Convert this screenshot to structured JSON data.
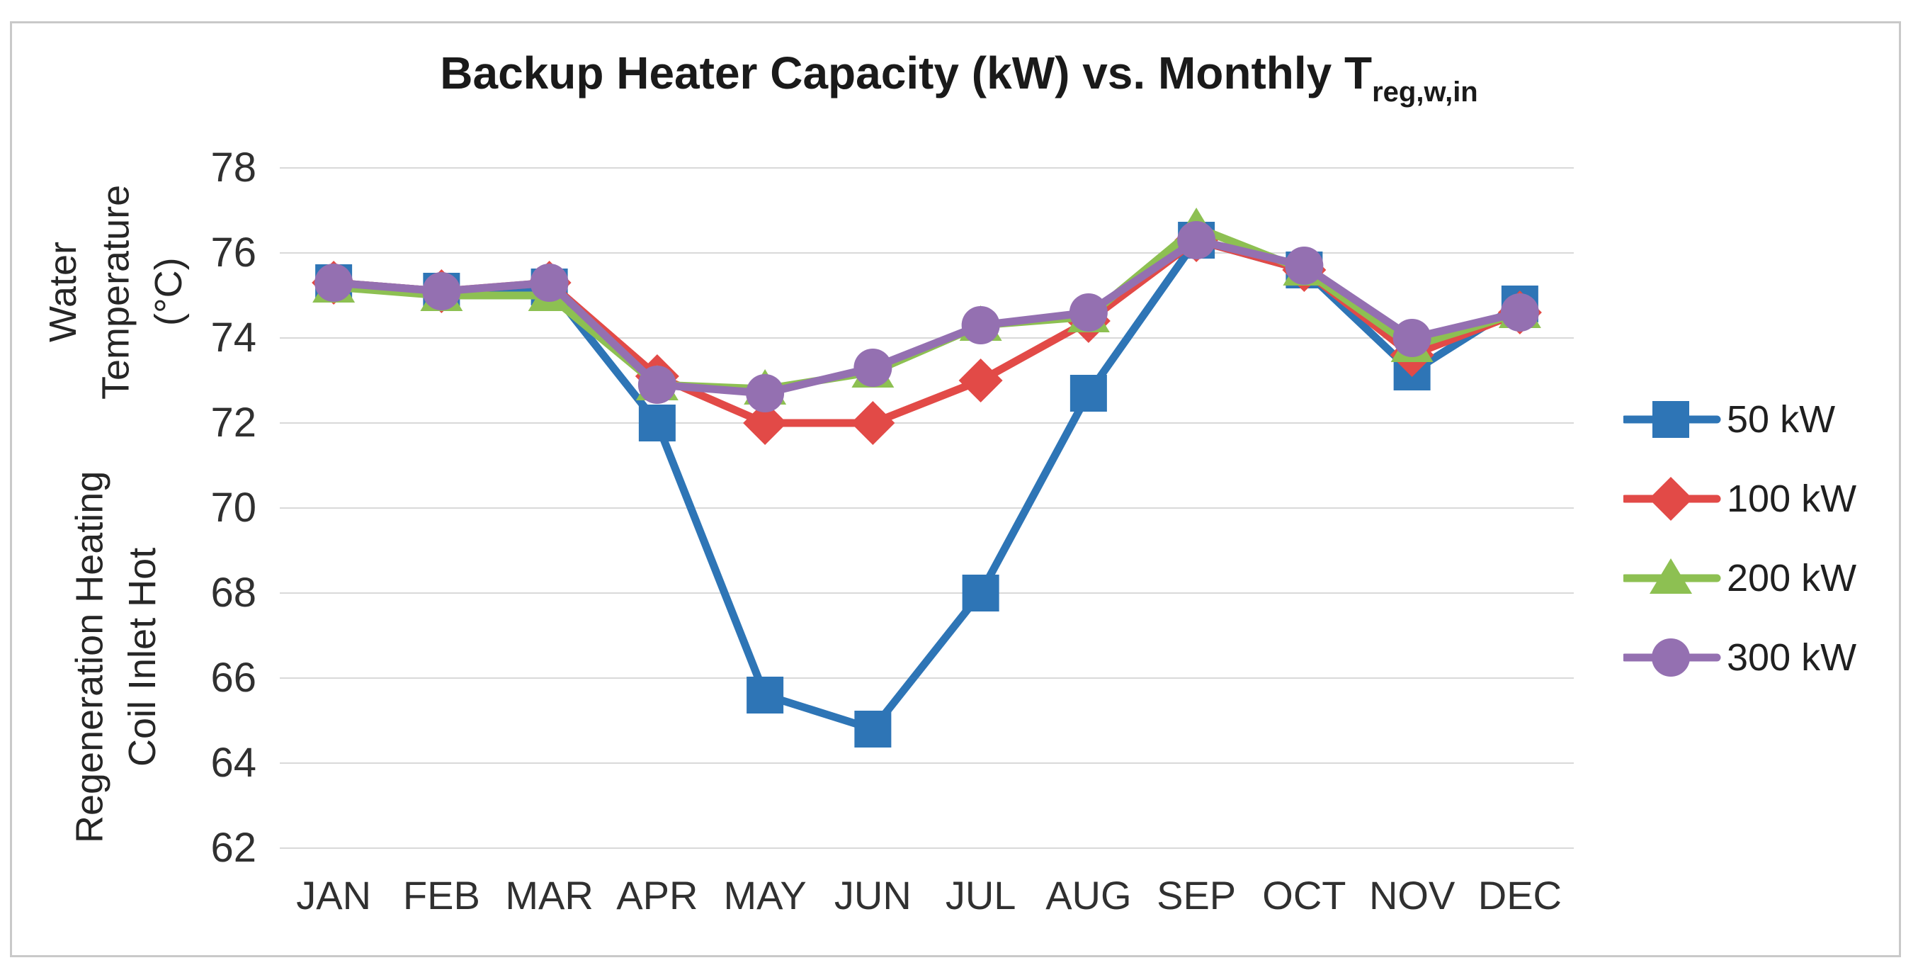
{
  "chart_data": {
    "type": "line",
    "title_main": "Backup Heater Capacity (kW) vs. Monthly T",
    "title_sub": "reg,w,in",
    "ylabel_line1": "Regeneration Heating Coil Inlet Hot",
    "ylabel_line2": "Water Temperature (°C)",
    "categories": [
      "JAN",
      "FEB",
      "MAR",
      "APR",
      "MAY",
      "JUN",
      "JUL",
      "AUG",
      "SEP",
      "OCT",
      "NOV",
      "DEC"
    ],
    "ylim": [
      62,
      78
    ],
    "yticks": [
      78,
      76,
      74,
      72,
      70,
      68,
      66,
      64,
      62
    ],
    "grid": "horizontal-only",
    "legend_position": "right",
    "series": [
      {
        "name": "50 kW",
        "marker": "square",
        "color": "#2E75B6",
        "values": [
          75.3,
          75.1,
          75.2,
          72.0,
          65.6,
          64.8,
          68.0,
          72.7,
          76.3,
          75.6,
          73.2,
          74.8
        ]
      },
      {
        "name": "100 kW",
        "marker": "diamond",
        "color": "#E24A47",
        "values": [
          75.3,
          75.1,
          75.3,
          73.1,
          72.0,
          72.0,
          73.0,
          74.4,
          76.3,
          75.6,
          73.6,
          74.6
        ]
      },
      {
        "name": "200 kW",
        "marker": "triangle",
        "color": "#8DC052",
        "values": [
          75.2,
          75.0,
          75.0,
          72.9,
          72.8,
          73.2,
          74.3,
          74.5,
          76.6,
          75.6,
          73.8,
          74.6
        ]
      },
      {
        "name": "300 kW",
        "marker": "circle",
        "color": "#9470B1",
        "values": [
          75.3,
          75.1,
          75.3,
          72.9,
          72.7,
          73.3,
          74.3,
          74.6,
          76.3,
          75.7,
          74.0,
          74.6
        ]
      }
    ]
  },
  "colors": {
    "background": "#FFFFFF",
    "border": "#C9C9C9",
    "gridline": "#D9D9D9",
    "axis_text": "#303030",
    "title_text": "#1A1A1A"
  }
}
